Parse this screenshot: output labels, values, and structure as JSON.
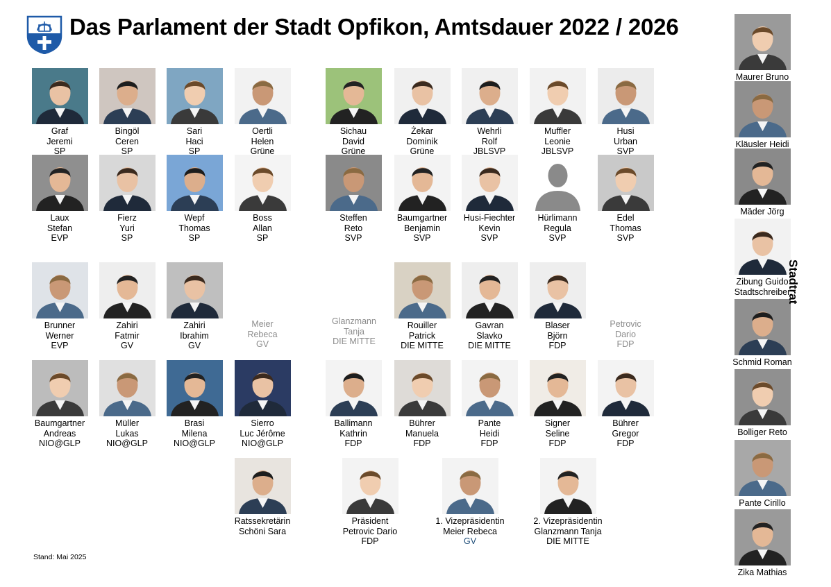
{
  "title": "Das Parlament der Stadt Opfikon, Amtsdauer 2022 / 2026",
  "stand": "Stand: Mai 2025",
  "side_label": "Stadtrat",
  "members": [
    {
      "l1": "Graf",
      "l2": "Jeremi",
      "l3": "SP",
      "photo": "portrait",
      "bg": "#4a7a8a"
    },
    {
      "l1": "Bingöl",
      "l2": "Ceren",
      "l3": "SP",
      "photo": "portrait",
      "bg": "#cfc6c0"
    },
    {
      "l1": "Sari",
      "l2": "Haci",
      "l3": "SP",
      "photo": "portrait",
      "bg": "#7fa6c2"
    },
    {
      "l1": "Oertli",
      "l2": "Helen",
      "l3": "Grüne",
      "photo": "portrait",
      "bg": "#f2f2f2"
    },
    {
      "l1": "Sichau",
      "l2": "David",
      "l3": "Grüne",
      "photo": "portrait",
      "bg": "#9cc27a"
    },
    {
      "l1": "Żekar",
      "l2": "Dominik",
      "l3": "Grüne",
      "photo": "portrait",
      "bg": "#f0f0f0"
    },
    {
      "l1": "Wehrli",
      "l2": "Rolf",
      "l3": "JBLSVP",
      "photo": "portrait",
      "bg": "#f0f0f0"
    },
    {
      "l1": "Muffler",
      "l2": "Leonie",
      "l3": "JBLSVP",
      "photo": "portrait",
      "bg": "#f2f2f2"
    },
    {
      "l1": "Husi",
      "l2": "Urban",
      "l3": "SVP",
      "photo": "portrait",
      "bg": "#ececec"
    },
    {
      "l1": "Laux",
      "l2": "Stefan",
      "l3": "EVP",
      "photo": "portrait",
      "bg": "#8f8f8f"
    },
    {
      "l1": "Fierz",
      "l2": "Yuri",
      "l3": "SP",
      "photo": "portrait",
      "bg": "#d8d8d8"
    },
    {
      "l1": "Wepf",
      "l2": "Thomas",
      "l3": "SP",
      "photo": "portrait",
      "bg": "#7aa6d6"
    },
    {
      "l1": "Boss",
      "l2": "Allan",
      "l3": "SP",
      "photo": "portrait",
      "bg": "#f4f4f4"
    },
    {
      "l1": "Steffen",
      "l2": "Reto",
      "l3": "SVP",
      "photo": "portrait",
      "bg": "#8a8a8a"
    },
    {
      "l1": "Baumgartner",
      "l2": "Benjamin",
      "l3": "SVP",
      "photo": "portrait",
      "bg": "#f3f3f3"
    },
    {
      "l1": "Husi-Fiechter",
      "l2": "Kevin",
      "l3": "SVP",
      "photo": "portrait",
      "bg": "#f3f3f3"
    },
    {
      "l1": "Hürlimann",
      "l2": "Regula",
      "l3": "SVP",
      "photo": "placeholder",
      "bg": "#ffffff"
    },
    {
      "l1": "Edel",
      "l2": "Thomas",
      "l3": "SVP",
      "photo": "portrait",
      "bg": "#c9c9c9"
    },
    {
      "l1": "Brunner",
      "l2": "Werner",
      "l3": "EVP",
      "photo": "portrait",
      "bg": "#dfe3e8"
    },
    {
      "l1": "Zahiri",
      "l2": "Fatmir",
      "l3": "GV",
      "photo": "portrait",
      "bg": "#eeeeee"
    },
    {
      "l1": "Zahiri",
      "l2": "Ibrahim",
      "l3": "GV",
      "photo": "portrait",
      "bg": "#bfbfbf"
    },
    {
      "l1": "Meier",
      "l2": "Rebeca",
      "l3": "GV",
      "photo": "none",
      "muted": true
    },
    {
      "l1": "Glanzmann",
      "l2": "Tanja",
      "l3": "DIE MITTE",
      "photo": "none",
      "muted": true
    },
    {
      "l1": "Rouiller",
      "l2": "Patrick",
      "l3": "DIE MITTE",
      "photo": "portrait",
      "bg": "#d9d2c4"
    },
    {
      "l1": "Gavran",
      "l2": "Slavko",
      "l3": "DIE MITTE",
      "photo": "portrait",
      "bg": "#eeeeee"
    },
    {
      "l1": "Blaser",
      "l2": "Björn",
      "l3": "FDP",
      "photo": "portrait",
      "bg": "#eeeeee"
    },
    {
      "l1": "Petrovic",
      "l2": "Dario",
      "l3": "FDP",
      "photo": "none",
      "muted": true
    },
    {
      "l1": "Baumgartner",
      "l2": "Andreas",
      "l3": "NIO@GLP",
      "photo": "portrait",
      "bg": "#bcbcbc"
    },
    {
      "l1": "Müller",
      "l2": "Lukas",
      "l3": "NIO@GLP",
      "photo": "portrait",
      "bg": "#e0e0e0"
    },
    {
      "l1": "Brasi",
      "l2": "Milena",
      "l3": "NIO@GLP",
      "photo": "portrait",
      "bg": "#3f6a94"
    },
    {
      "l1": "Sierro",
      "l2": "Luc Jérôme",
      "l3": "NIO@GLP",
      "photo": "portrait",
      "bg": "#2b3b63"
    },
    {
      "l1": "Ballimann",
      "l2": "Kathrin",
      "l3": "FDP",
      "photo": "portrait",
      "bg": "#f3f3f3"
    },
    {
      "l1": "Bührer",
      "l2": "Manuela",
      "l3": "FDP",
      "photo": "portrait",
      "bg": "#dedbd7"
    },
    {
      "l1": "Pante",
      "l2": "Heidi",
      "l3": "FDP",
      "photo": "portrait",
      "bg": "#f3f3f3"
    },
    {
      "l1": "Signer",
      "l2": "Seline",
      "l3": "FDP",
      "photo": "portrait",
      "bg": "#f0ece6"
    },
    {
      "l1": "Bührer",
      "l2": "Gregor",
      "l3": "FDP",
      "photo": "portrait",
      "bg": "#f3f3f3"
    },
    {
      "l1": "Ratssekretärin",
      "l2": "Schöni Sara",
      "l3": "",
      "photo": "portrait",
      "bg": "#e8e4df"
    },
    {
      "l1": "Präsident",
      "l2": "Petrovic Dario",
      "l3": "FDP",
      "photo": "portrait",
      "bg": "#f3f3f3"
    },
    {
      "l1": "1. Vizepräsidentin",
      "l2": "Meier Rebeca",
      "l3": "GV",
      "photo": "portrait",
      "bg": "#f3f3f3",
      "party_blue": true
    },
    {
      "l1": "2. Vizepräsidentin",
      "l2": "Glanzmann Tanja",
      "l3": "DIE MITTE",
      "photo": "portrait",
      "bg": "#f3f3f3"
    }
  ],
  "stadtrat": [
    {
      "l1": "Maurer Bruno",
      "l2": "",
      "bg": "#9a9a9a"
    },
    {
      "l1": "Kläusler Heidi",
      "l2": "",
      "bg": "#8f8f8f"
    },
    {
      "l1": "Mäder Jörg",
      "l2": "",
      "bg": "#8a8a8a"
    },
    {
      "l1": "Zibung Guido",
      "l2": "Stadtschreiber",
      "bg": "#f2f2f2"
    },
    {
      "l1": "Schmid Roman",
      "l2": "",
      "bg": "#8f8f8f"
    },
    {
      "l1": "Bolliger Reto",
      "l2": "",
      "bg": "#909090"
    },
    {
      "l1": "Pante Cirillo",
      "l2": "",
      "bg": "#a8a8a8"
    },
    {
      "l1": "Zika Mathias",
      "l2": "",
      "bg": "#9a9a9a"
    }
  ]
}
